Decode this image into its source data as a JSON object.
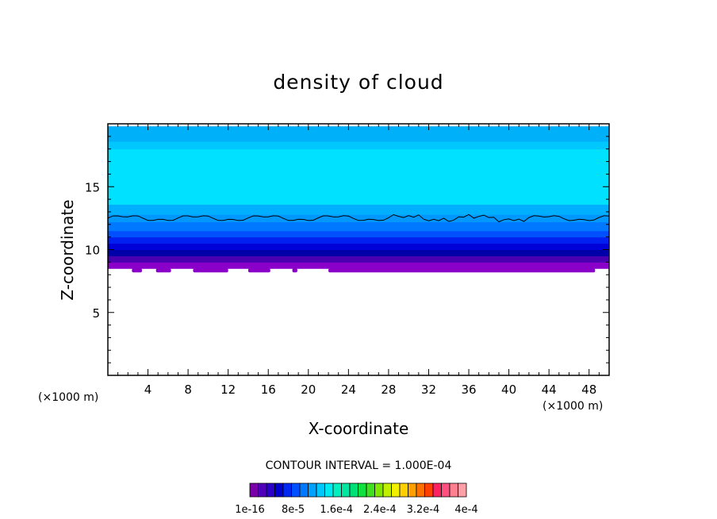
{
  "chart_data": {
    "type": "heatmap",
    "title": "density of cloud",
    "xlabel": "X-coordinate",
    "ylabel": "Z-coordinate",
    "x_unit_left": "(×1000 m)",
    "x_unit_right": "(×1000 m)",
    "xlim": [
      0,
      50
    ],
    "ylim": [
      0,
      20
    ],
    "x_ticks": [
      4,
      8,
      12,
      16,
      20,
      24,
      28,
      32,
      36,
      40,
      44,
      48
    ],
    "y_ticks": [
      5,
      10,
      15
    ],
    "x_tick_labels": [
      "4",
      "8",
      "12",
      "16",
      "20",
      "24",
      "28",
      "32",
      "36",
      "40",
      "44",
      "48"
    ],
    "y_tick_labels": [
      "5",
      "10",
      "15"
    ],
    "cloud_base_z": 8.5,
    "cloud_top_z": 19.8,
    "contour_line_z": 12.5,
    "bands": [
      {
        "z0": 8.5,
        "z1": 9.0,
        "color": "#8a00c8"
      },
      {
        "z0": 9.0,
        "z1": 9.5,
        "color": "#4a00b0"
      },
      {
        "z0": 9.5,
        "z1": 10.0,
        "color": "#0000a8"
      },
      {
        "z0": 10.0,
        "z1": 10.5,
        "color": "#0000d8"
      },
      {
        "z0": 10.5,
        "z1": 11.0,
        "color": "#0020f0"
      },
      {
        "z0": 11.0,
        "z1": 11.5,
        "color": "#0050ff"
      },
      {
        "z0": 11.5,
        "z1": 12.2,
        "color": "#0078ff"
      },
      {
        "z0": 12.2,
        "z1": 12.8,
        "color": "#0098ff"
      },
      {
        "z0": 12.8,
        "z1": 13.6,
        "color": "#00b0ff"
      },
      {
        "z0": 13.6,
        "z1": 18.0,
        "color": "#00e0ff"
      },
      {
        "z0": 18.0,
        "z1": 18.6,
        "color": "#00c8ff"
      },
      {
        "z0": 18.6,
        "z1": 19.8,
        "color": "#00b0f8"
      }
    ],
    "contour_interval_text": "CONTOUR INTERVAL = 1.000E-04",
    "colorbar": {
      "colors": [
        "#7a00a8",
        "#5000b8",
        "#2c00c8",
        "#0000d0",
        "#0028f0",
        "#0050ff",
        "#0078ff",
        "#00a0ff",
        "#00c8ff",
        "#00e8f0",
        "#00f0c0",
        "#00e8a0",
        "#00e078",
        "#10e040",
        "#40e020",
        "#80e800",
        "#c0f000",
        "#f0f000",
        "#ffd000",
        "#ffa000",
        "#ff7000",
        "#ff4000",
        "#ff2060",
        "#ff5080",
        "#ff8090",
        "#ffa0a8"
      ],
      "labels": [
        "1e-16",
        "8e-5",
        "1.6e-4",
        "2.4e-4",
        "3.2e-4",
        "4e-4"
      ]
    }
  }
}
